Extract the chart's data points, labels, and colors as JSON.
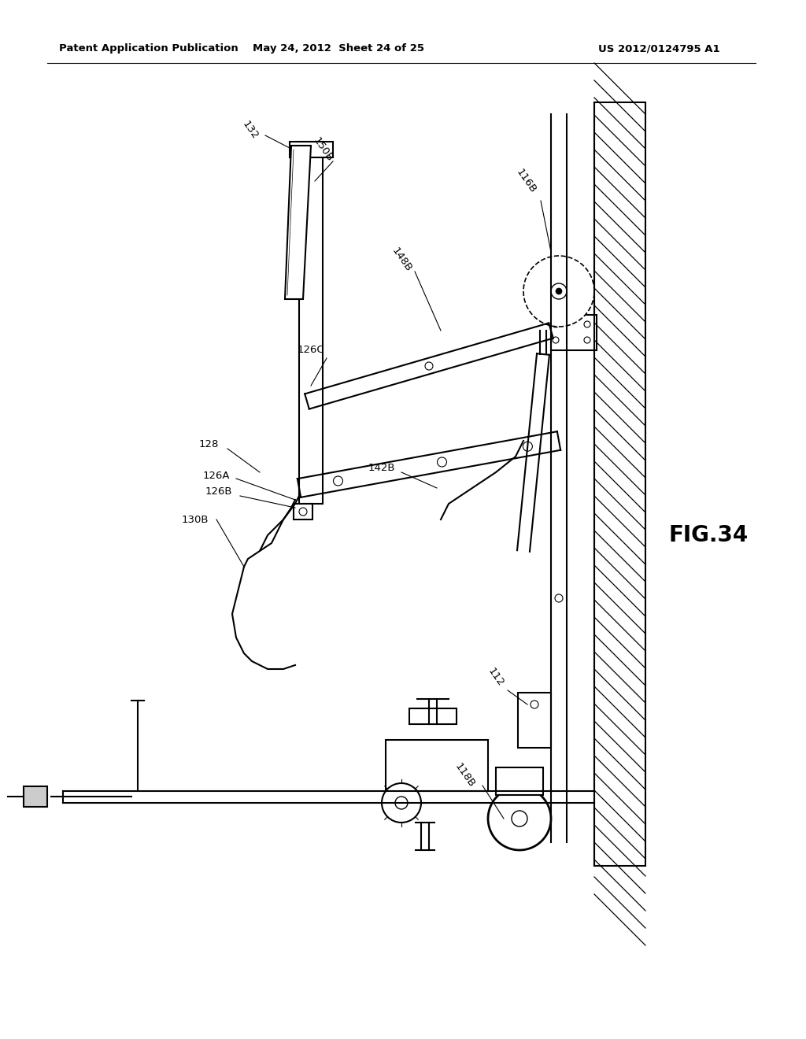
{
  "title_left": "Patent Application Publication",
  "title_center": "May 24, 2012  Sheet 24 of 25",
  "title_right": "US 2012/0124795 A1",
  "fig_label": "FIG.34",
  "background_color": "#ffffff",
  "line_color": "#000000"
}
